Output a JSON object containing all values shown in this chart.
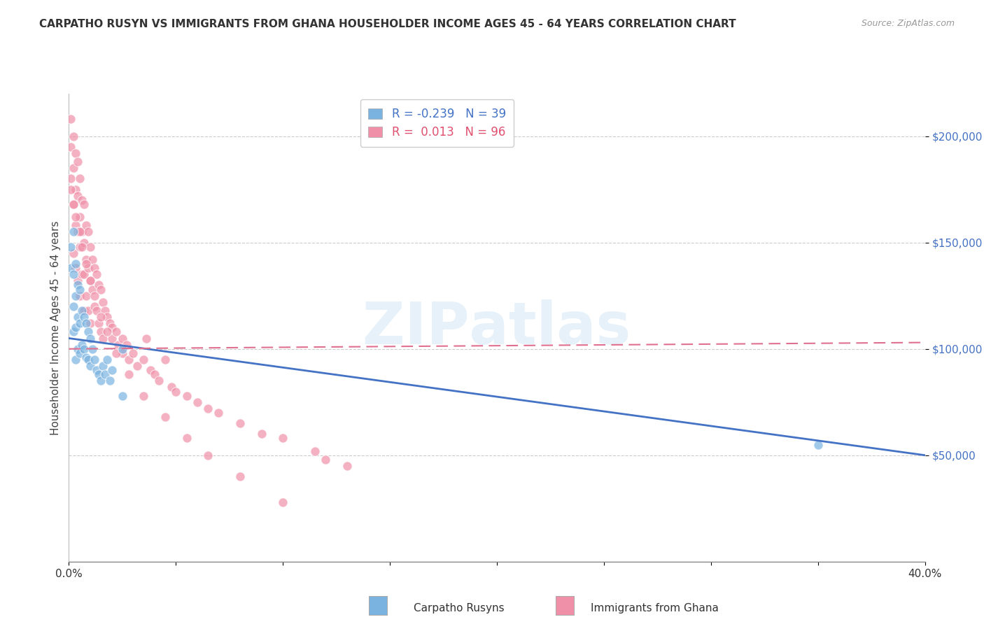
{
  "title": "CARPATHO RUSYN VS IMMIGRANTS FROM GHANA HOUSEHOLDER INCOME AGES 45 - 64 YEARS CORRELATION CHART",
  "source": "Source: ZipAtlas.com",
  "ylabel": "Householder Income Ages 45 - 64 years",
  "yticks": [
    50000,
    100000,
    150000,
    200000
  ],
  "ytick_labels": [
    "$50,000",
    "$100,000",
    "$150,000",
    "$200,000"
  ],
  "legend_label_blue": "Carpatho Rusyns",
  "legend_label_pink": "Immigrants from Ghana",
  "blue_color": "#7ab3e0",
  "pink_color": "#f090a8",
  "blue_line_color": "#4472c4",
  "pink_line_color": "#e07090",
  "xmin": 0.0,
  "xmax": 0.4,
  "ymin": 0,
  "ymax": 220000,
  "blue_R": -0.239,
  "blue_N": 39,
  "pink_R": 0.013,
  "pink_N": 96,
  "blue_line_x0": 0.0,
  "blue_line_y0": 105000,
  "blue_line_x1": 0.4,
  "blue_line_y1": 50000,
  "pink_line_x0": 0.0,
  "pink_line_y0": 100000,
  "pink_line_x1": 0.4,
  "pink_line_y1": 103000,
  "blue_scatter_x": [
    0.001,
    0.001,
    0.002,
    0.002,
    0.002,
    0.002,
    0.003,
    0.003,
    0.003,
    0.003,
    0.004,
    0.004,
    0.004,
    0.005,
    0.005,
    0.005,
    0.006,
    0.006,
    0.007,
    0.007,
    0.008,
    0.008,
    0.009,
    0.009,
    0.01,
    0.01,
    0.011,
    0.012,
    0.013,
    0.014,
    0.015,
    0.016,
    0.017,
    0.018,
    0.019,
    0.02,
    0.025,
    0.025,
    0.35
  ],
  "blue_scatter_y": [
    148000,
    138000,
    155000,
    135000,
    120000,
    108000,
    140000,
    125000,
    110000,
    95000,
    130000,
    115000,
    100000,
    128000,
    112000,
    98000,
    118000,
    102000,
    115000,
    100000,
    112000,
    96000,
    108000,
    95000,
    105000,
    92000,
    100000,
    95000,
    90000,
    88000,
    85000,
    92000,
    88000,
    95000,
    85000,
    90000,
    100000,
    78000,
    55000
  ],
  "pink_scatter_x": [
    0.001,
    0.001,
    0.001,
    0.002,
    0.002,
    0.002,
    0.002,
    0.003,
    0.003,
    0.003,
    0.003,
    0.004,
    0.004,
    0.004,
    0.004,
    0.005,
    0.005,
    0.005,
    0.005,
    0.006,
    0.006,
    0.006,
    0.007,
    0.007,
    0.007,
    0.007,
    0.008,
    0.008,
    0.008,
    0.009,
    0.009,
    0.009,
    0.01,
    0.01,
    0.01,
    0.011,
    0.011,
    0.012,
    0.012,
    0.013,
    0.013,
    0.014,
    0.014,
    0.015,
    0.015,
    0.016,
    0.016,
    0.017,
    0.018,
    0.019,
    0.02,
    0.02,
    0.022,
    0.023,
    0.025,
    0.025,
    0.027,
    0.028,
    0.03,
    0.032,
    0.035,
    0.036,
    0.038,
    0.04,
    0.042,
    0.045,
    0.048,
    0.05,
    0.055,
    0.06,
    0.065,
    0.07,
    0.08,
    0.09,
    0.1,
    0.115,
    0.12,
    0.13,
    0.001,
    0.002,
    0.003,
    0.005,
    0.006,
    0.008,
    0.01,
    0.012,
    0.015,
    0.018,
    0.022,
    0.028,
    0.035,
    0.045,
    0.055,
    0.065,
    0.08,
    0.1
  ],
  "pink_scatter_y": [
    208000,
    195000,
    180000,
    200000,
    185000,
    168000,
    145000,
    192000,
    175000,
    158000,
    138000,
    188000,
    172000,
    155000,
    132000,
    180000,
    162000,
    148000,
    125000,
    170000,
    155000,
    135000,
    168000,
    150000,
    135000,
    118000,
    158000,
    142000,
    125000,
    155000,
    138000,
    118000,
    148000,
    132000,
    112000,
    142000,
    128000,
    138000,
    120000,
    135000,
    118000,
    130000,
    112000,
    128000,
    108000,
    122000,
    105000,
    118000,
    115000,
    112000,
    110000,
    105000,
    108000,
    102000,
    105000,
    98000,
    102000,
    95000,
    98000,
    92000,
    95000,
    105000,
    90000,
    88000,
    85000,
    95000,
    82000,
    80000,
    78000,
    75000,
    72000,
    70000,
    65000,
    60000,
    58000,
    52000,
    48000,
    45000,
    175000,
    168000,
    162000,
    155000,
    148000,
    140000,
    132000,
    125000,
    115000,
    108000,
    98000,
    88000,
    78000,
    68000,
    58000,
    50000,
    40000,
    28000
  ]
}
